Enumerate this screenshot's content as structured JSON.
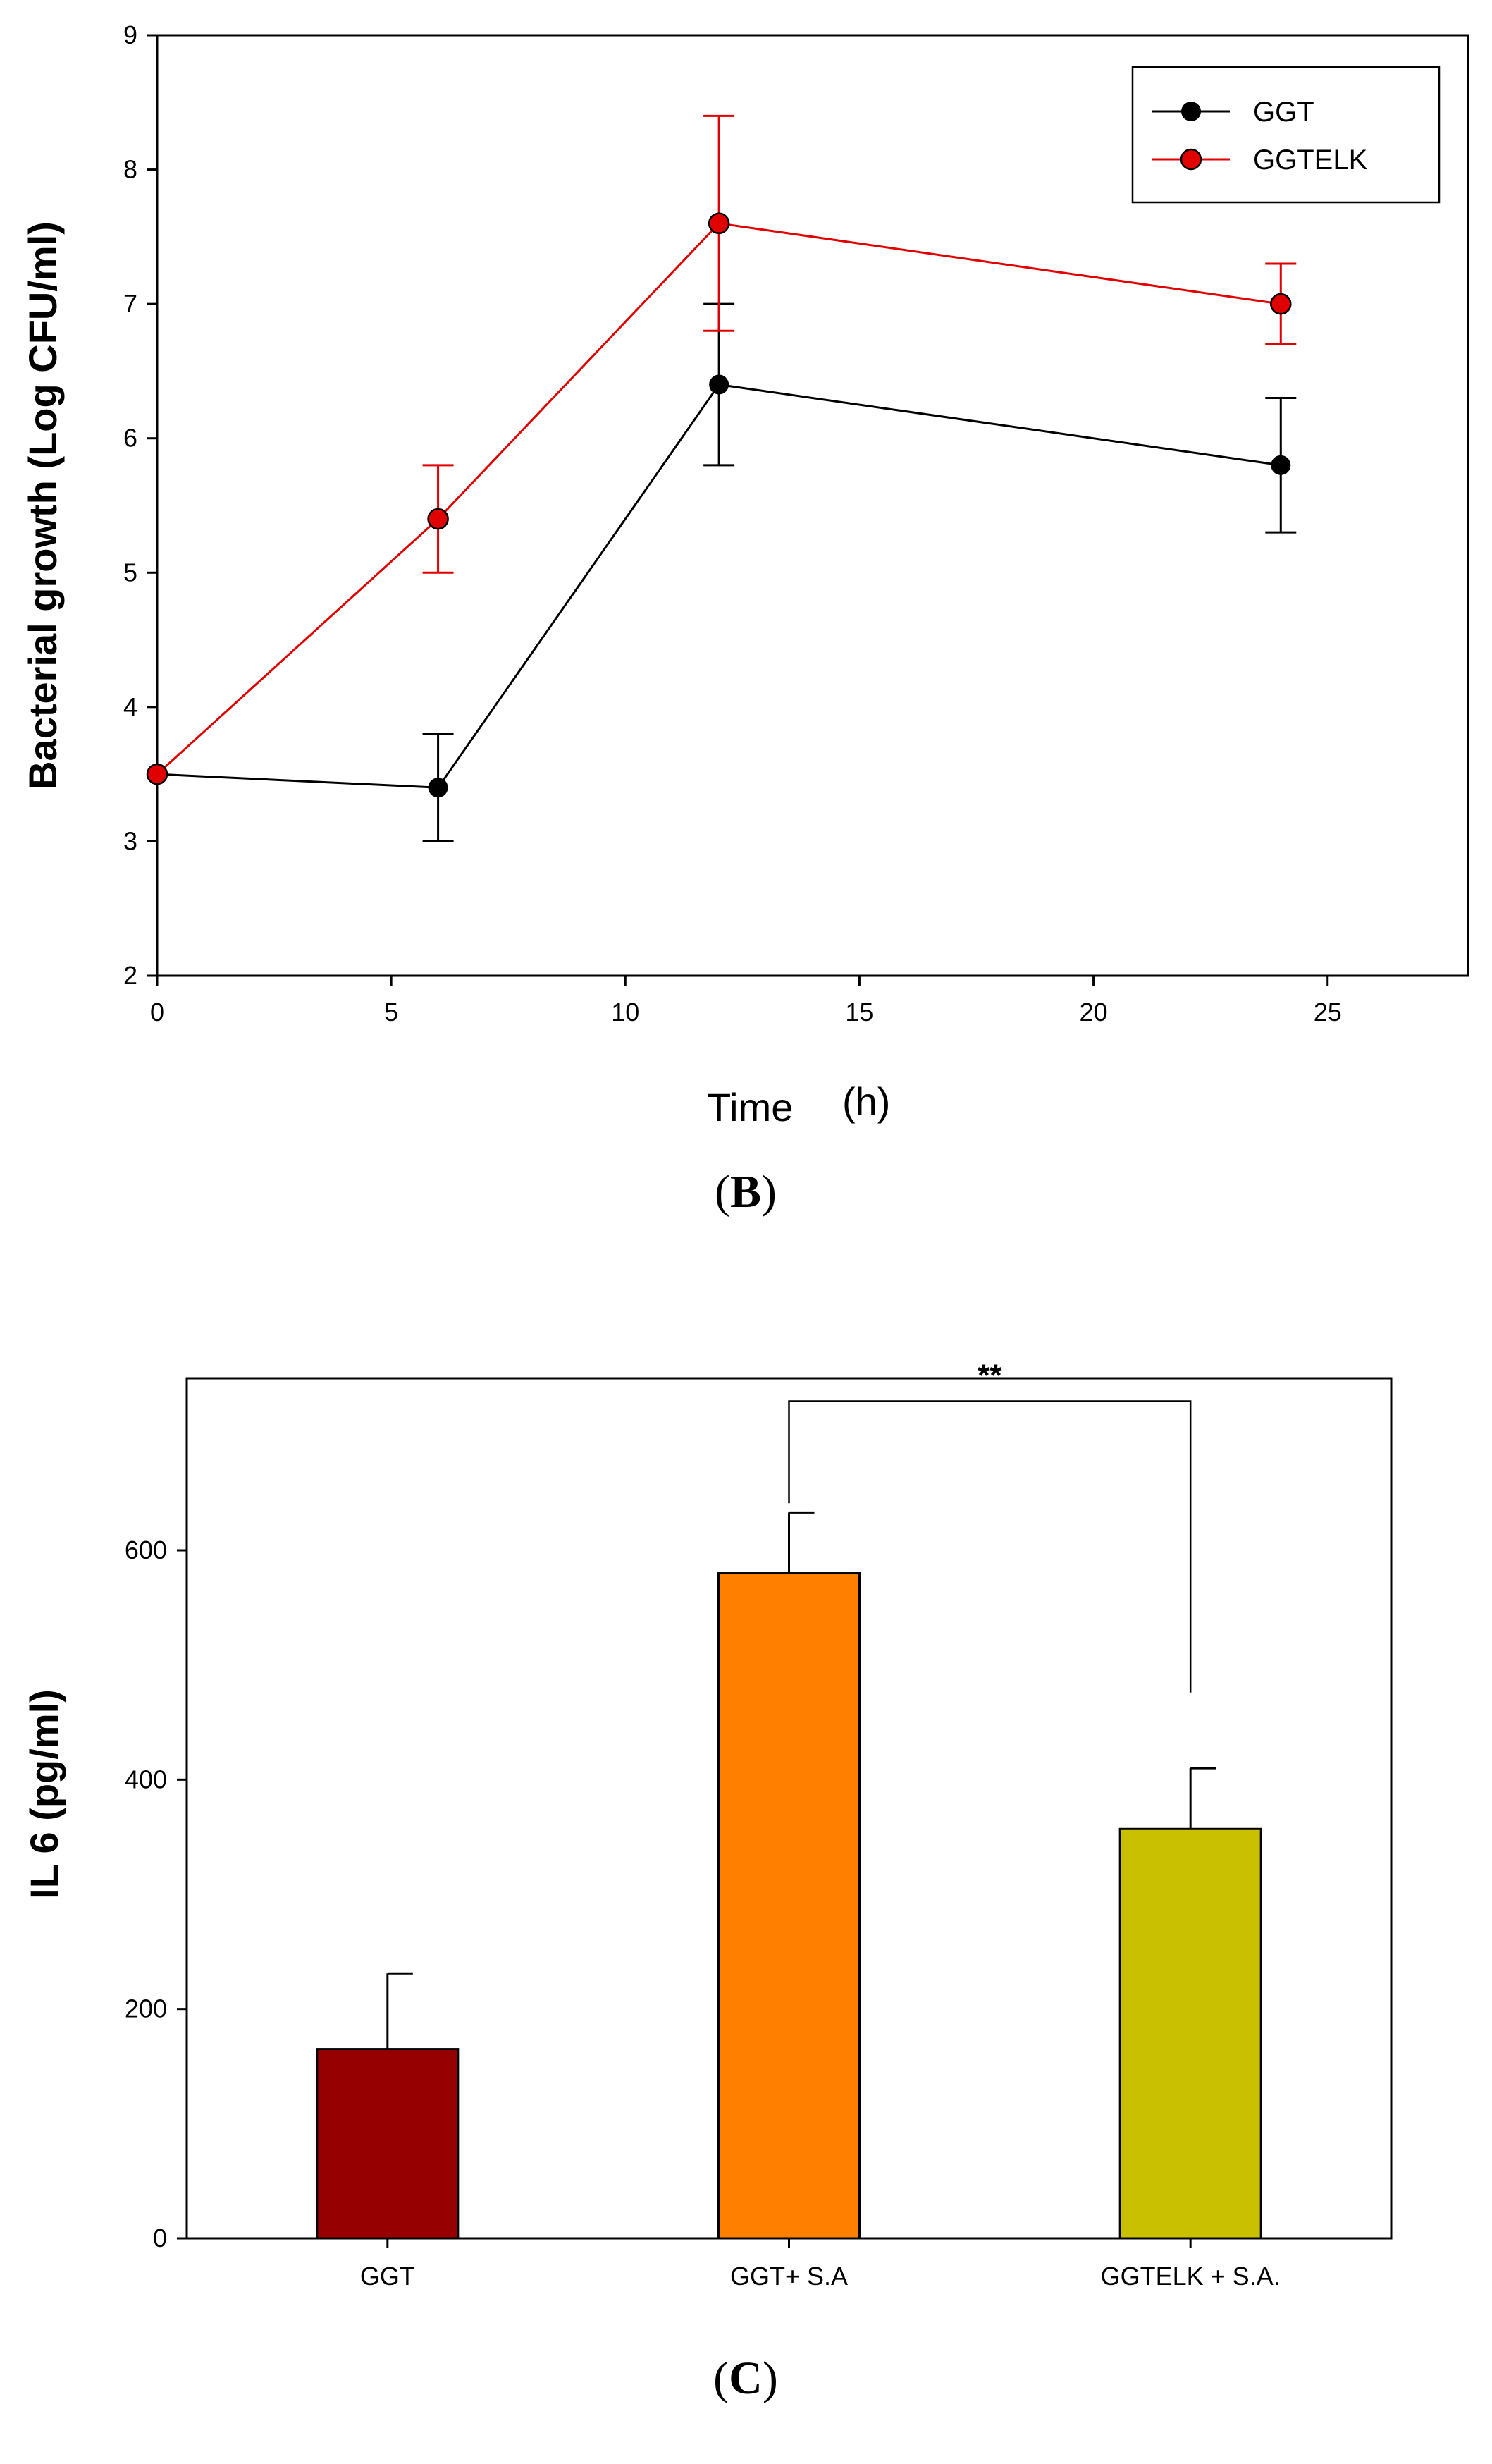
{
  "chart_data": [
    {
      "type": "line",
      "panel": "B",
      "xlabel": "Time",
      "xunit": "(h)",
      "ylabel": "Bacterial growth (Log CFU/ml)",
      "xlim": [
        0,
        28
      ],
      "ylim": [
        2,
        9
      ],
      "xticks": [
        0,
        5,
        10,
        15,
        20,
        25
      ],
      "yticks": [
        2,
        3,
        4,
        5,
        6,
        7,
        8,
        9
      ],
      "legend_position": "top-right",
      "series": [
        {
          "name": "GGT",
          "color": "#000000",
          "x": [
            0,
            6,
            12,
            24
          ],
          "y": [
            3.5,
            3.4,
            6.4,
            5.8
          ],
          "err": [
            0,
            0.4,
            0.6,
            0.5
          ]
        },
        {
          "name": "GGTELK",
          "color": "#e00000",
          "x": [
            0,
            6,
            12,
            24
          ],
          "y": [
            3.5,
            5.4,
            7.6,
            7.0
          ],
          "err": [
            0,
            0.4,
            0.8,
            0.3
          ]
        }
      ]
    },
    {
      "type": "bar",
      "panel": "C",
      "ylabel": "IL 6 (pg/ml)",
      "ylim": [
        0,
        750
      ],
      "yticks": [
        0,
        200,
        400,
        600
      ],
      "categories": [
        "GGT",
        "GGT+ S.A",
        "GGTELK + S.A."
      ],
      "values": [
        165,
        580,
        357
      ],
      "errors": [
        66,
        53,
        53
      ],
      "colors": [
        "#960000",
        "#ff8000",
        "#c8c000"
      ],
      "significance": {
        "between": [
          1,
          2
        ],
        "label": "**"
      }
    }
  ]
}
